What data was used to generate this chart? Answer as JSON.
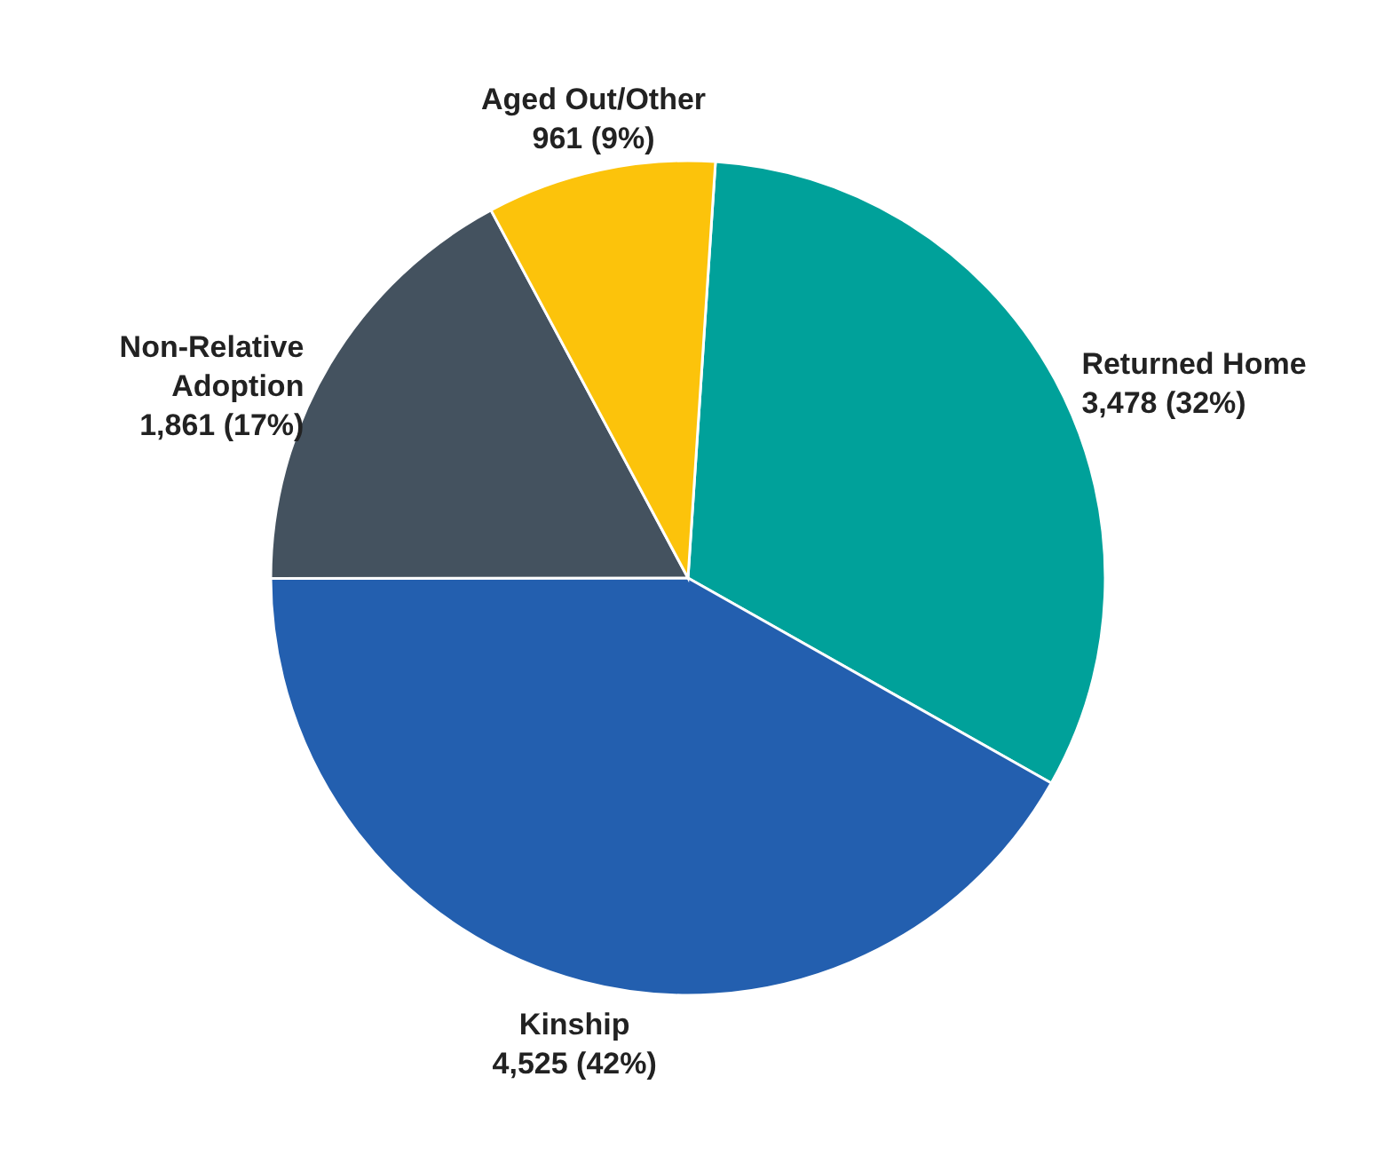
{
  "chart_data": {
    "type": "pie",
    "categories": [
      "Returned Home",
      "Kinship",
      "Non-Relative Adoption",
      "Aged Out/Other"
    ],
    "values": [
      3478,
      4525,
      1861,
      961
    ],
    "colors": [
      "#00a19a",
      "#235faf",
      "#44525f",
      "#fcc30b"
    ],
    "value_labels": [
      "3,478 (32%)",
      "4,525 (42%)",
      "1,861 (17%)",
      "961 (9%)"
    ]
  }
}
